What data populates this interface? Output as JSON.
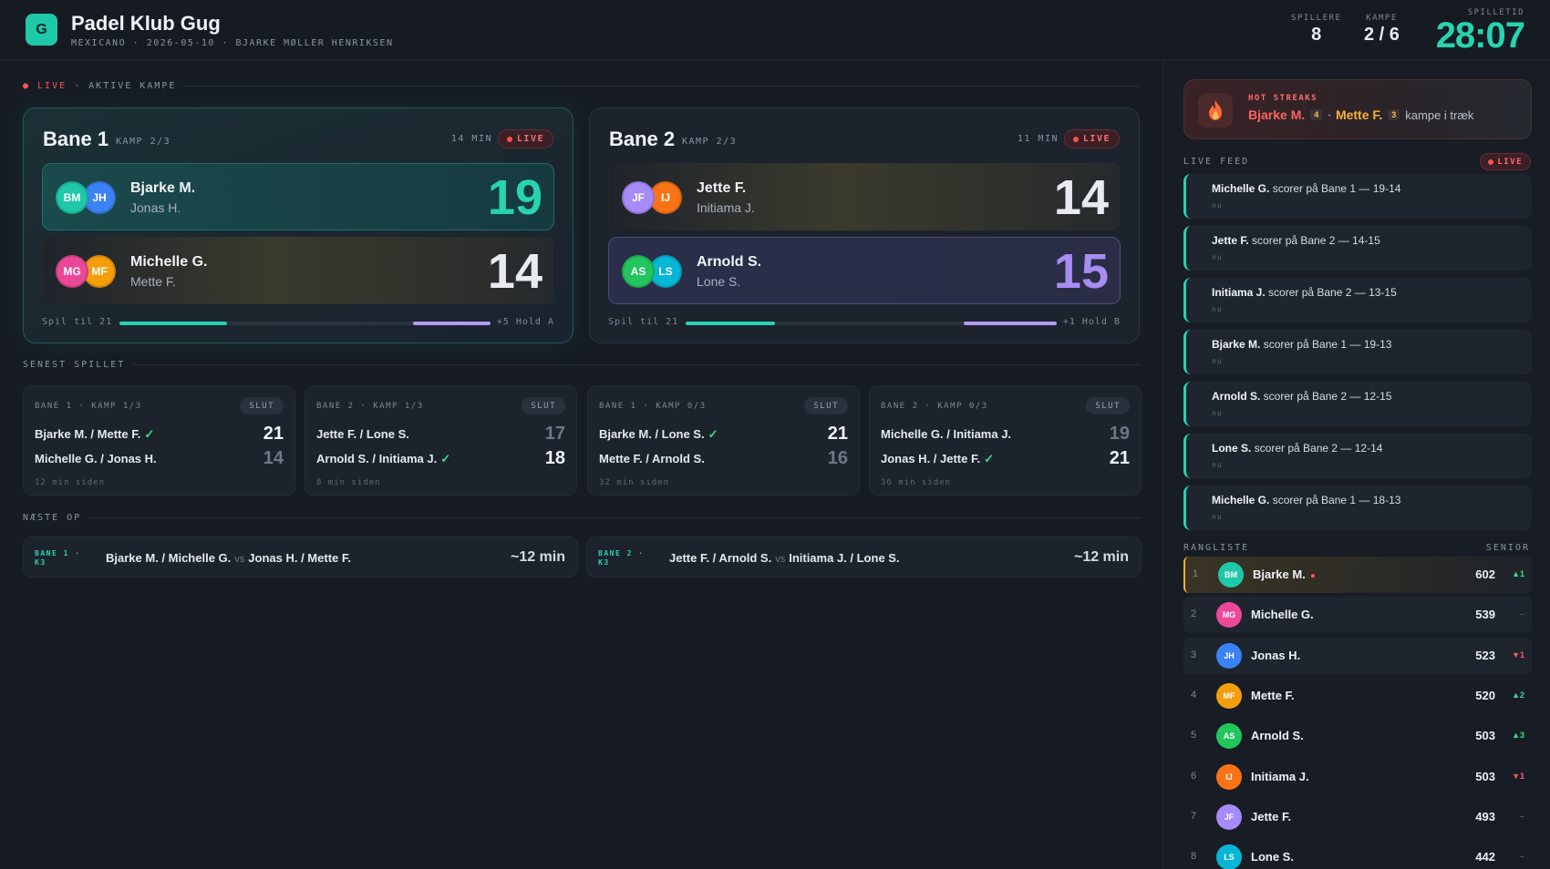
{
  "header": {
    "logo_letter": "G",
    "club_name": "Padel Klub Gug",
    "subtitle": "MEXICANO · 2026-05-10 · BJARKE MØLLER HENRIKSEN",
    "stats": [
      {
        "label": "SPILLERE",
        "value": "8"
      },
      {
        "label": "KAMPE",
        "value": "2 / 6"
      }
    ],
    "timer_label": "SPILLETID",
    "timer_value": "28:07"
  },
  "live_section": {
    "dot_label": "● LIVE",
    "title": "· AKTIVE KAMPE"
  },
  "courts": [
    {
      "name": "Bane 1",
      "kamp": "KAMP 2/3",
      "minutes": "14 MIN",
      "live": "LIVE",
      "teams": [
        {
          "a": "BM",
          "b": "JH",
          "p1": "Bjarke M.",
          "p2": "Jonas H.",
          "score": "19"
        },
        {
          "a": "MG",
          "b": "MF",
          "p1": "Michelle G.",
          "p2": "Mette F.",
          "score": "14"
        }
      ],
      "progress_left": "Spil til 21",
      "progress_right": "+5 Hold A",
      "progress_a": 0.29,
      "progress_b": 0.21
    },
    {
      "name": "Bane 2",
      "kamp": "KAMP 2/3",
      "minutes": "11 MIN",
      "live": "LIVE",
      "teams": [
        {
          "a": "JF",
          "b": "IJ",
          "p1": "Jette F.",
          "p2": "Initiama J.",
          "score": "14"
        },
        {
          "a": "AS",
          "b": "LS",
          "p1": "Arnold S.",
          "p2": "Lone S.",
          "score": "15"
        }
      ],
      "progress_left": "Spil til 21",
      "progress_right": "+1 Hold B",
      "progress_a": 0.24,
      "progress_b": 0.25
    }
  ],
  "recent_title": "SENEST SPILLET",
  "recent": [
    {
      "head": "BANE 1 · KAMP 1/3",
      "status": "SLUT",
      "r1": "Bjarke M. / Mette F.",
      "s1": "21",
      "w1": true,
      "r2": "Michelle G. / Jonas H.",
      "s2": "14",
      "w2": false,
      "ago": "12 min siden"
    },
    {
      "head": "BANE 2 · KAMP 1/3",
      "status": "SLUT",
      "r1": "Jette F. / Lone S.",
      "s1": "17",
      "w1": false,
      "r2": "Arnold S. / Initiama J.",
      "s2": "18",
      "w2": true,
      "ago": "8 min siden"
    },
    {
      "head": "BANE 1 · KAMP 0/3",
      "status": "SLUT",
      "r1": "Bjarke M. / Lone S.",
      "s1": "21",
      "w1": true,
      "r2": "Mette F. / Arnold S.",
      "s2": "16",
      "w2": false,
      "ago": "32 min siden"
    },
    {
      "head": "BANE 2 · KAMP 0/3",
      "status": "SLUT",
      "r1": "Michelle G. / Initiama J.",
      "s1": "19",
      "w1": false,
      "r2": "Jonas H. / Jette F.",
      "s2": "21",
      "w2": true,
      "ago": "36 min siden"
    }
  ],
  "next_title": "NÆSTE OP",
  "next": [
    {
      "tag1": "BANE 1 ·",
      "tag2": "K3",
      "team1": "Bjarke M. / Michelle G.",
      "vs": "vs",
      "team2": "Jonas H. / Mette F.",
      "eta": "~12 min"
    },
    {
      "tag1": "BANE 2 ·",
      "tag2": "K3",
      "team1": "Jette F. / Arnold S.",
      "vs": "vs",
      "team2": "Initiama J. / Lone S.",
      "eta": "~12 min"
    }
  ],
  "streak": {
    "title": "HOT STREAKS",
    "name1": "Bjarke M.",
    "count1": "4",
    "sep": "·",
    "name2": "Mette F.",
    "count2": "3",
    "tail": "kampe i træk"
  },
  "feed_title": "LIVE FEED",
  "feed_live": "LIVE",
  "feed": [
    {
      "who": "Michelle G.",
      "text": " scorer på Bane 1 — 19-14",
      "when": "nu"
    },
    {
      "who": "Jette F.",
      "text": " scorer på Bane 2 — 14-15",
      "when": "nu"
    },
    {
      "who": "Initiama J.",
      "text": " scorer på Bane 2 — 13-15",
      "when": "nu"
    },
    {
      "who": "Bjarke M.",
      "text": " scorer på Bane 1 — 19-13",
      "when": "nu"
    },
    {
      "who": "Arnold S.",
      "text": " scorer på Bane 2 — 12-15",
      "when": "nu"
    },
    {
      "who": "Lone S.",
      "text": " scorer på Bane 2 — 12-14",
      "when": "nu"
    },
    {
      "who": "Michelle G.",
      "text": " scorer på Bane 1 — 18-13",
      "when": "nu"
    }
  ],
  "rank_title": "RANGLISTE",
  "rank_right": "SENIOR",
  "ranking": [
    {
      "pos": "1",
      "ini": "BM",
      "name": "Bjarke M.",
      "pts": "602",
      "chg": "▲1",
      "dir": "up",
      "hot": true
    },
    {
      "pos": "2",
      "ini": "MG",
      "name": "Michelle G.",
      "pts": "539",
      "chg": "–",
      "dir": "none",
      "hot": false
    },
    {
      "pos": "3",
      "ini": "JH",
      "name": "Jonas H.",
      "pts": "523",
      "chg": "▼1",
      "dir": "down",
      "hot": false
    },
    {
      "pos": "4",
      "ini": "MF",
      "name": "Mette F.",
      "pts": "520",
      "chg": "▲2",
      "dir": "up",
      "hot": false
    },
    {
      "pos": "5",
      "ini": "AS",
      "name": "Arnold S.",
      "pts": "503",
      "chg": "▲3",
      "dir": "up",
      "hot": false
    },
    {
      "pos": "6",
      "ini": "IJ",
      "name": "Initiama J.",
      "pts": "503",
      "chg": "▼1",
      "dir": "down",
      "hot": false
    },
    {
      "pos": "7",
      "ini": "JF",
      "name": "Jette F.",
      "pts": "493",
      "chg": "–",
      "dir": "none",
      "hot": false
    },
    {
      "pos": "8",
      "ini": "LS",
      "name": "Lone S.",
      "pts": "442",
      "chg": "–",
      "dir": "none",
      "hot": false
    }
  ],
  "avatar_colors": {
    "BM": "#1fc8a8",
    "JH": "#3b82f6",
    "MG": "#ec4899",
    "MF": "#f59e0b",
    "JF": "#a78bfa",
    "IJ": "#f97316",
    "AS": "#22c55e",
    "LS": "#06b6d4"
  }
}
